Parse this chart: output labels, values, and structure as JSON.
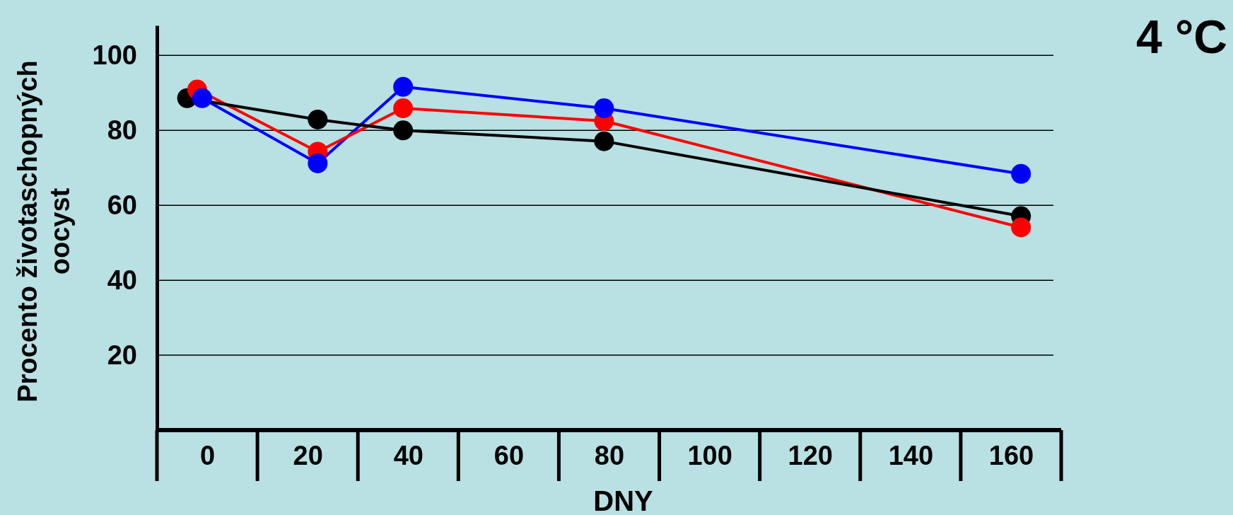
{
  "chart_data": {
    "type": "line",
    "title": "4 °C",
    "xlabel": "DNY",
    "ylabel": "Procento životaschopných oocyst",
    "xlim": [
      -10,
      170
    ],
    "xticks": [
      0,
      20,
      40,
      60,
      80,
      100,
      120,
      140,
      160
    ],
    "ylim": [
      0,
      108
    ],
    "yticks": [
      20,
      40,
      60,
      80,
      100
    ],
    "grid": "y",
    "marker": "circle",
    "line_style": "solid",
    "series": [
      {
        "color": "#0000ff",
        "x": [
          -1,
          22,
          39,
          79,
          162
        ],
        "values": [
          88.6,
          71.2,
          91.6,
          85.9,
          68.4
        ]
      },
      {
        "color": "#ff0000",
        "x": [
          -2,
          22,
          39,
          79,
          162
        ],
        "values": [
          90.9,
          74.3,
          85.9,
          82.5,
          54.1
        ]
      },
      {
        "color": "#000000",
        "x": [
          -4,
          22,
          39,
          79,
          162
        ],
        "values": [
          88.6,
          82.9,
          80,
          77.1,
          57.1
        ]
      }
    ]
  }
}
